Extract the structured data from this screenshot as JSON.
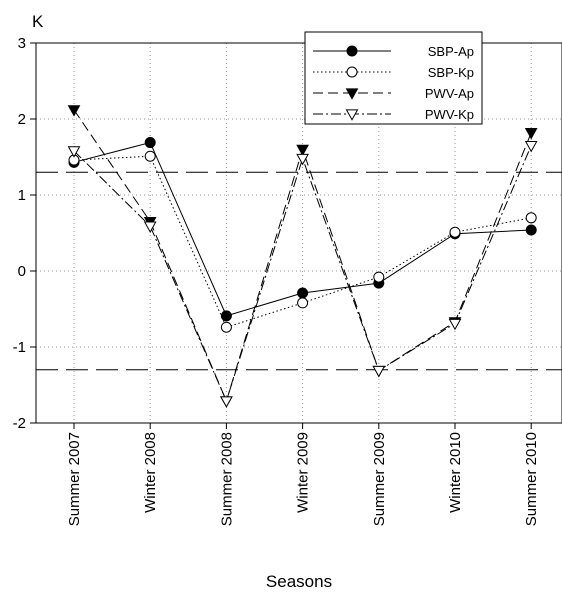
{
  "chart_data": {
    "type": "line",
    "title": "",
    "xlabel": "Seasons",
    "ylabel": "K",
    "categories": [
      "Summer 2007",
      "Winter 2008",
      "Summer 2008",
      "Winter 2009",
      "Summer 2009",
      "Winter 2010",
      "Summer 2010"
    ],
    "ylim": [
      -2,
      3
    ],
    "yticks": [
      "-2",
      "-1",
      "0",
      "1",
      "2",
      "3"
    ],
    "grid": true,
    "legend_position": "top-right",
    "reference_lines": [
      1.3,
      -1.3
    ],
    "series": [
      {
        "name": "SBP-Ap",
        "values": [
          1.43,
          1.69,
          -0.59,
          -0.29,
          -0.16,
          0.49,
          0.54
        ],
        "marker": "filled-circle",
        "line": "solid"
      },
      {
        "name": "SBP-Kp",
        "values": [
          1.46,
          1.51,
          -0.74,
          -0.42,
          -0.08,
          0.51,
          0.7
        ],
        "marker": "open-circle",
        "line": "dotted"
      },
      {
        "name": "PWV-Ap",
        "values": [
          2.12,
          0.65,
          -1.71,
          1.6,
          -1.31,
          -0.67,
          1.82
        ],
        "marker": "filled-triangle-down",
        "line": "dashed"
      },
      {
        "name": "PWV-Kp",
        "values": [
          1.58,
          0.59,
          -1.71,
          1.48,
          -1.31,
          -0.69,
          1.65
        ],
        "marker": "open-triangle-down",
        "line": "dashdot"
      }
    ]
  }
}
